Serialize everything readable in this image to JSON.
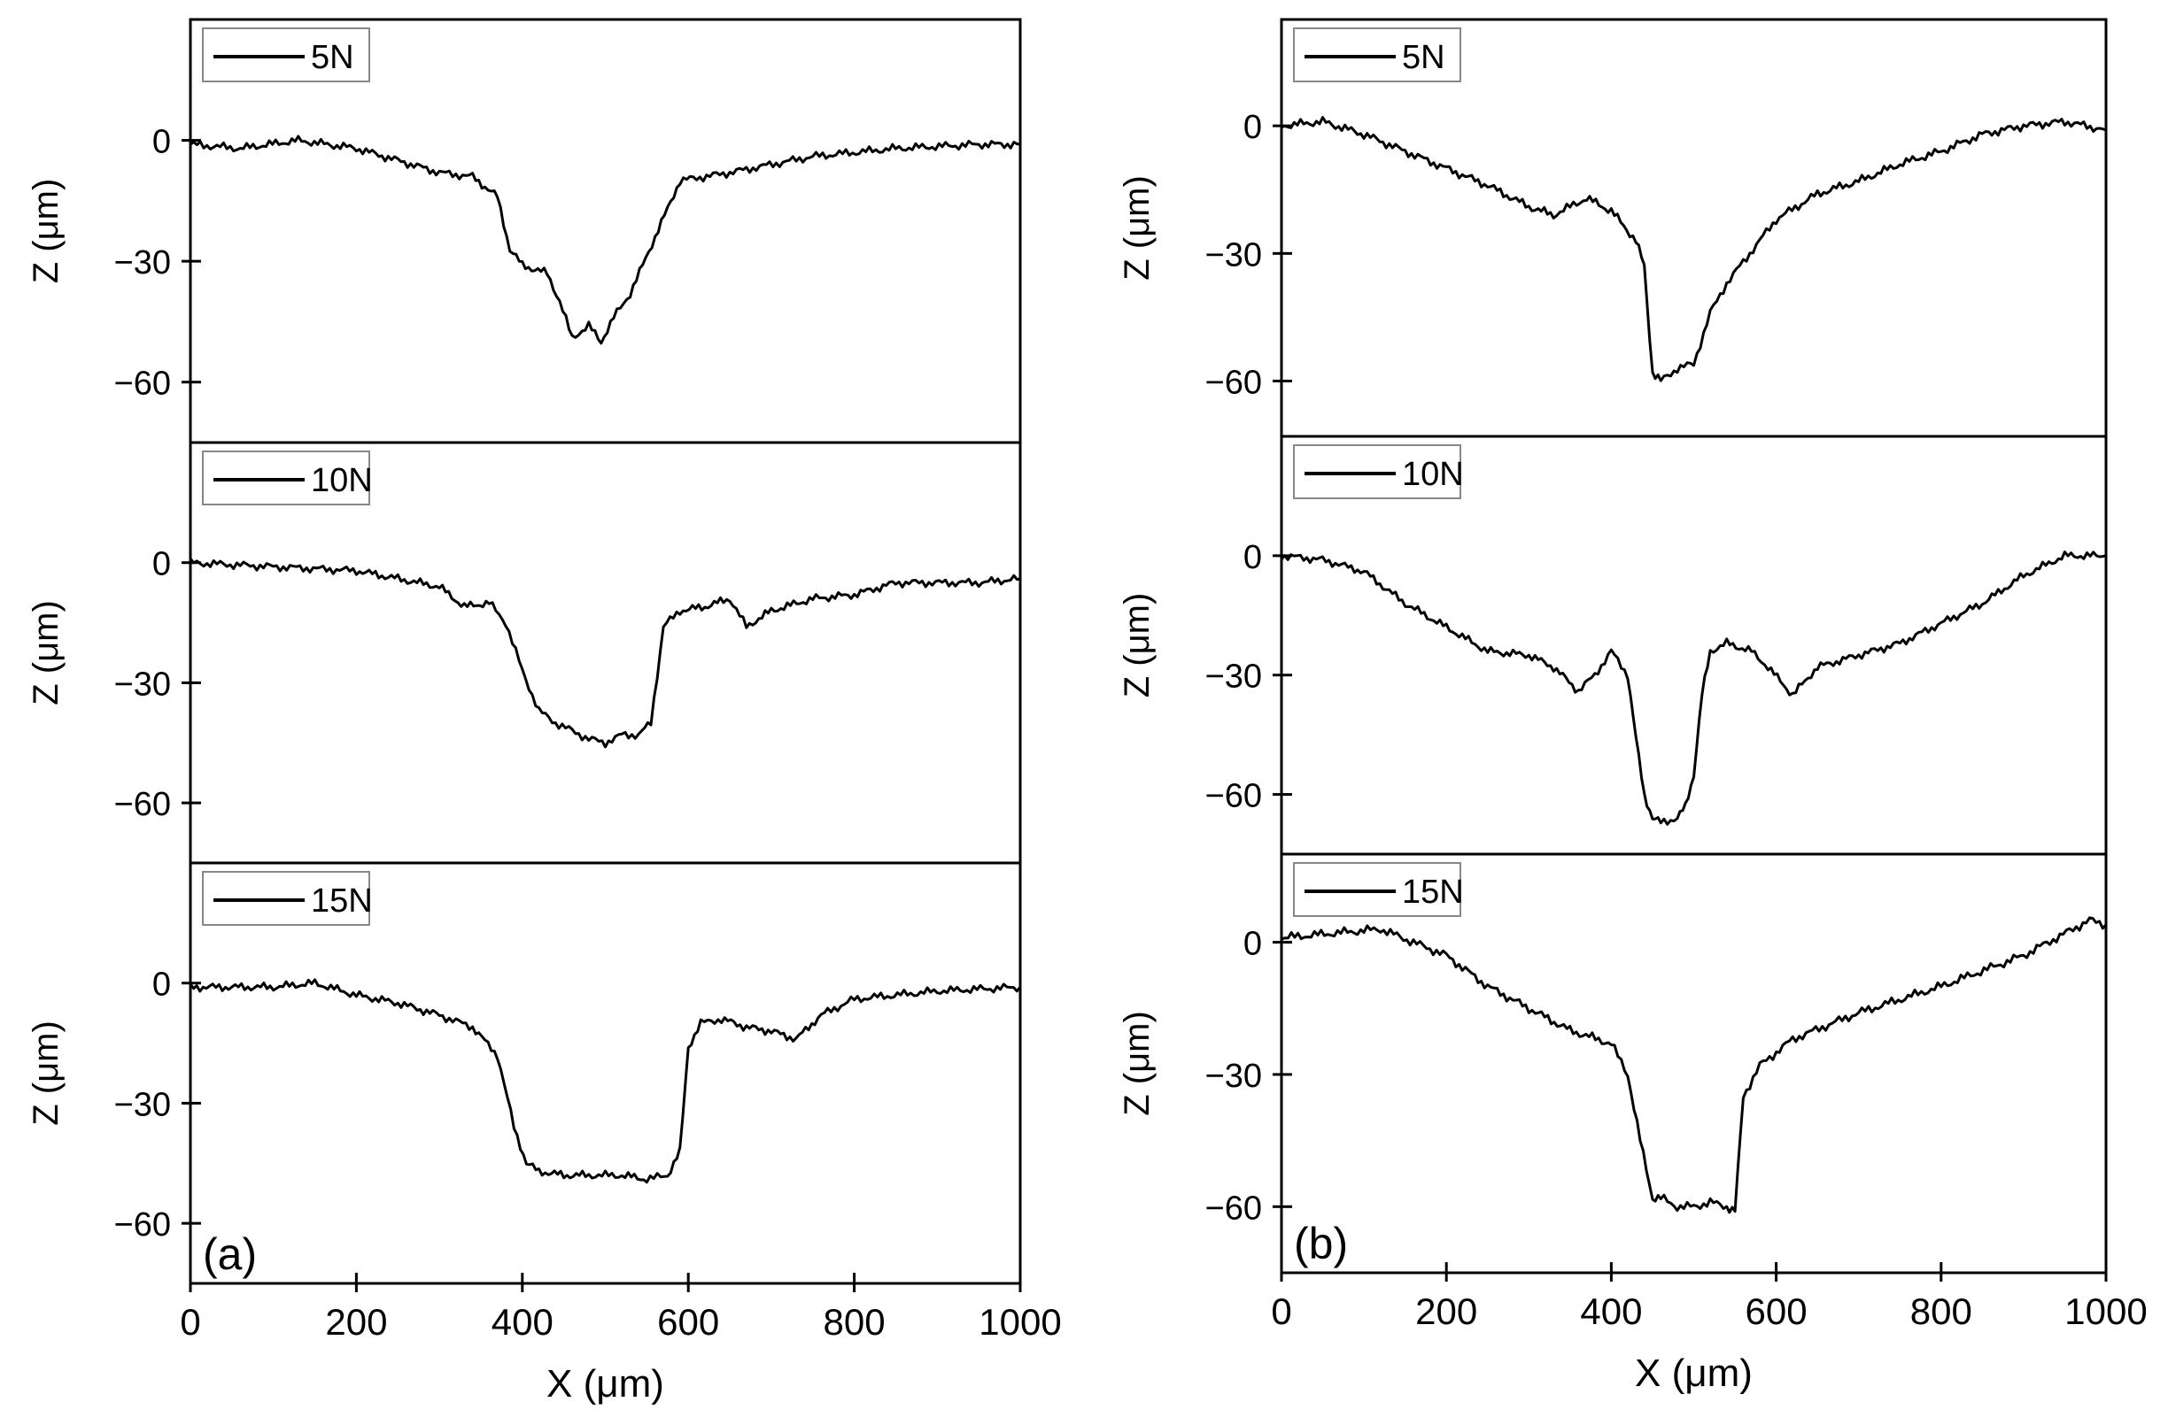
{
  "figure": {
    "figure_x_label": "X (μm)"
  },
  "chart_data": [
    {
      "id": "a",
      "type": "line",
      "panel_label": "(a)",
      "xlim": [
        0,
        1000
      ],
      "x_ticks": [
        "0",
        "200",
        "400",
        "600",
        "800",
        "1000"
      ],
      "xlabel": "X (μm)",
      "subplots": [
        {
          "legend": "5N",
          "ylabel": "Z (μm)",
          "ylim": [
            -75,
            30
          ],
          "y_ticks": [
            "0",
            "-30",
            "-60"
          ],
          "series": [
            {
              "name": "5N",
              "x": [
                0,
                60,
                130,
                200,
                250,
                300,
                340,
                370,
                385,
                400,
                430,
                445,
                460,
                480,
                495,
                510,
                530,
                560,
                590,
                650,
                750,
                850,
                950,
                1000
              ],
              "y": [
                -1,
                -2,
                0,
                -2,
                -5,
                -8,
                -9,
                -14,
                -27,
                -31,
                -33,
                -40,
                -49,
                -46,
                -50,
                -44,
                -38,
                -24,
                -10,
                -8,
                -4,
                -2,
                -1,
                -1
              ]
            }
          ]
        },
        {
          "legend": "10N",
          "ylabel": "Z (μm)",
          "ylim": [
            -75,
            30
          ],
          "y_ticks": [
            "0",
            "-30",
            "-60"
          ],
          "series": [
            {
              "name": "10N",
              "x": [
                0,
                100,
                200,
                250,
                300,
                330,
                360,
                380,
                400,
                420,
                440,
                460,
                480,
                500,
                520,
                540,
                555,
                570,
                590,
                620,
                650,
                670,
                700,
                750,
                800,
                850,
                950,
                1000
              ],
              "y": [
                0,
                -1,
                -2,
                -4,
                -6,
                -11,
                -10,
                -15,
                -27,
                -37,
                -40,
                -42,
                -44,
                -45,
                -43,
                -43,
                -40,
                -16,
                -12,
                -11,
                -9,
                -16,
                -12,
                -9,
                -8,
                -5,
                -5,
                -4
              ]
            }
          ]
        },
        {
          "legend": "15N",
          "ylabel": "Z (μm)",
          "ylim": [
            -75,
            30
          ],
          "y_ticks": [
            "0",
            "-30",
            "-60"
          ],
          "series": [
            {
              "name": "15N",
              "x": [
                0,
                50,
                100,
                150,
                200,
                250,
                300,
                340,
                370,
                390,
                405,
                420,
                450,
                480,
                500,
                520,
                550,
                575,
                590,
                600,
                615,
                640,
                670,
                700,
                730,
                760,
                800,
                900,
                1000
              ],
              "y": [
                -1,
                -1,
                -1,
                0,
                -3,
                -5,
                -8,
                -11,
                -18,
                -36,
                -45,
                -47,
                -48,
                -48,
                -48,
                -48,
                -49,
                -48,
                -42,
                -16,
                -10,
                -9,
                -11,
                -12,
                -14,
                -8,
                -4,
                -2,
                -1
              ]
            }
          ]
        }
      ]
    },
    {
      "id": "b",
      "type": "line",
      "panel_label": "(b)",
      "xlim": [
        0,
        1000
      ],
      "x_ticks": [
        "0",
        "200",
        "400",
        "600",
        "800",
        "1000"
      ],
      "xlabel": "X (μm)",
      "subplots": [
        {
          "legend": "5N",
          "ylabel": "Z (μm)",
          "ylim": [
            -73,
            25
          ],
          "y_ticks": [
            "0",
            "-30",
            "-60"
          ],
          "series": [
            {
              "name": "5N",
              "x": [
                0,
                50,
                100,
                150,
                200,
                250,
                300,
                330,
                370,
                400,
                430,
                440,
                450,
                460,
                480,
                500,
                520,
                540,
                560,
                600,
                650,
                700,
                750,
                800,
                850,
                900,
                950,
                1000
              ],
              "y": [
                0,
                1,
                -2,
                -6,
                -10,
                -14,
                -19,
                -21,
                -17,
                -20,
                -27,
                -33,
                -58,
                -60,
                -57,
                -56,
                -44,
                -37,
                -32,
                -22,
                -16,
                -13,
                -9,
                -6,
                -2,
                0,
                1,
                -1
              ]
            }
          ]
        },
        {
          "legend": "10N",
          "ylabel": "Z (μm)",
          "ylim": [
            -75,
            30
          ],
          "y_ticks": [
            "0",
            "-30",
            "-60"
          ],
          "series": [
            {
              "name": "10N",
              "x": [
                0,
                50,
                100,
                150,
                200,
                250,
                300,
                330,
                360,
                380,
                400,
                420,
                430,
                440,
                450,
                460,
                480,
                490,
                500,
                510,
                520,
                540,
                570,
                590,
                620,
                650,
                700,
                750,
                800,
                850,
                900,
                950,
                1000
              ],
              "y": [
                0,
                -1,
                -4,
                -12,
                -18,
                -24,
                -25,
                -28,
                -34,
                -30,
                -24,
                -30,
                -46,
                -60,
                -66,
                -67,
                -66,
                -63,
                -55,
                -35,
                -24,
                -22,
                -24,
                -28,
                -35,
                -28,
                -25,
                -22,
                -17,
                -12,
                -5,
                0,
                0
              ]
            }
          ]
        },
        {
          "legend": "15N",
          "ylabel": "Z (μm)",
          "ylim": [
            -75,
            20
          ],
          "y_ticks": [
            "0",
            "-30",
            "-60"
          ],
          "series": [
            {
              "name": "15N",
              "x": [
                0,
                60,
                120,
                200,
                250,
                300,
                350,
                400,
                420,
                435,
                450,
                460,
                480,
                500,
                520,
                540,
                550,
                560,
                580,
                620,
                700,
                800,
                900,
                980,
                1000
              ],
              "y": [
                1,
                2,
                3,
                -3,
                -10,
                -15,
                -20,
                -23,
                -30,
                -45,
                -58,
                -58,
                -60,
                -60,
                -59,
                -60,
                -61,
                -35,
                -28,
                -22,
                -16,
                -10,
                -3,
                5,
                4
              ]
            }
          ]
        }
      ]
    }
  ]
}
